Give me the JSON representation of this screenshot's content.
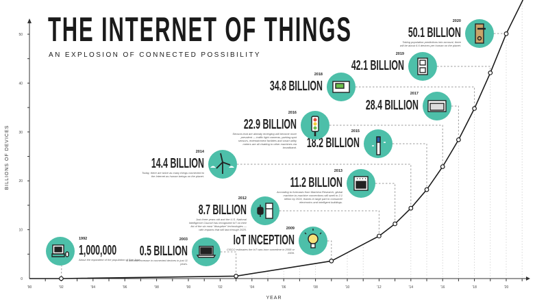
{
  "header": {
    "title": "THE INTERNET OF THINGS",
    "subtitle": "AN EXPLOSION OF CONNECTED POSSIBILITY"
  },
  "colors": {
    "accent": "#4dbfa9",
    "line": "#1a1a1a",
    "dashes": "#9a9a9a"
  },
  "chart_data": {
    "type": "line",
    "title": "THE INTERNET OF THINGS",
    "subtitle": "AN EXPLOSION OF CONNECTED POSSIBILITY",
    "xlabel": "YEAR",
    "ylabel": "BILLIONS OF DEVICES",
    "xlim": [
      1990,
      2021
    ],
    "ylim": [
      0,
      55
    ],
    "x_ticks": [
      "'90",
      "'92",
      "'94",
      "'96",
      "'98",
      "'00",
      "'02",
      "'04",
      "'06",
      "'08",
      "'10",
      "'12",
      "'14",
      "'16",
      "'18",
      "'20"
    ],
    "y_ticks": [
      "0",
      "10",
      "20",
      "30",
      "40",
      "50"
    ],
    "grid": false,
    "points": [
      {
        "year": 1990,
        "value": 0
      },
      {
        "year": 1992,
        "value": 0.001,
        "label": "1,000,000",
        "year_label": "1992",
        "icon": "computer-icon",
        "note": "About the equivalent of the population of San Jose."
      },
      {
        "year": 2003,
        "value": 0.5,
        "label": "0.5 BILLION",
        "year_label": "2003",
        "icon": "laptop-icon",
        "note": "A 499-fold increase in connected devices in just 11 years."
      },
      {
        "year": 2009,
        "value": 3.6,
        "label": "IoT INCEPTION",
        "year_label": "2009",
        "icon": "lightbulb-icon",
        "note": "CISCO estimates the IoT was born sometime in 2008 or 2009."
      },
      {
        "year": 2012,
        "value": 8.7,
        "label": "8.7 BILLION",
        "year_label": "2012",
        "icon": "watch-fridge-icon",
        "note": "Just three years old and the U.S. National Intelligence Council has recognized IoT on their list of the six most \"disruptive\" technologies — with impacts that will last through 2025."
      },
      {
        "year": 2013,
        "value": 11.2,
        "label": "11.2 BILLION",
        "year_label": "2013",
        "icon": "oven-icon",
        "note": "According to forecasts from Machina Research, global machine-to-machine connections will swell to 2.1 billion by 2024, thanks in large part to consumer electronics and intelligent buildings."
      },
      {
        "year": 2014,
        "value": 14.4,
        "label": "14.4 BILLION",
        "year_label": "2014",
        "icon": "wind-turbine-icon",
        "note": "Today, there are twice as many things connected to the Internet as human beings on the planet."
      },
      {
        "year": 2015,
        "value": 18.2,
        "label": "18.2 BILLION",
        "year_label": "2015",
        "icon": "toothbrush-icon",
        "note": ""
      },
      {
        "year": 2016,
        "value": 22.9,
        "label": "22.9 BILLION",
        "year_label": "2016",
        "icon": "traffic-light-icon",
        "note": "Sensors that are already emerging will become more prevalent — traffic light cameras, parking spot sensors, entertainment facilities and smart utility meters are all chatting to other machines via broadband."
      },
      {
        "year": 2017,
        "value": 28.4,
        "label": "28.4 BILLION",
        "year_label": "2017",
        "icon": "appliance-icon",
        "note": ""
      },
      {
        "year": 2018,
        "value": 34.8,
        "label": "34.8 BILLION",
        "year_label": "2018",
        "icon": "thermostat-icon",
        "note": ""
      },
      {
        "year": 2019,
        "value": 42.1,
        "label": "42.1 BILLION",
        "year_label": "2019",
        "icon": "power-outlet-icon",
        "note": ""
      },
      {
        "year": 2020,
        "value": 50.1,
        "label": "50.1 BILLION",
        "year_label": "2020",
        "icon": "door-lock-icon",
        "note": "Taking population predictions into account, there will be about 6.6 devices per human on the planet."
      }
    ]
  }
}
